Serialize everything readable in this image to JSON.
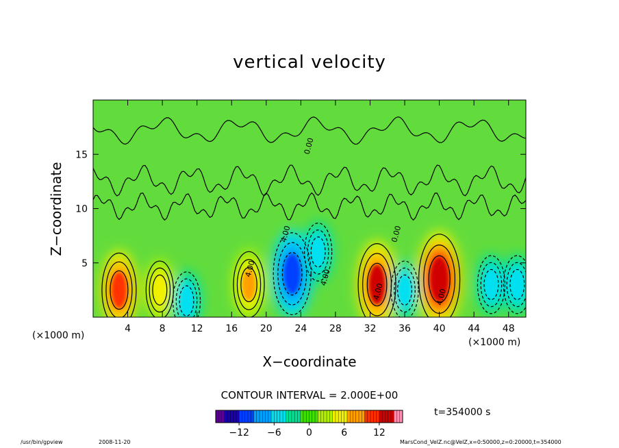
{
  "chart_data": {
    "type": "heatmap",
    "title": "vertical velocity",
    "xlabel": "X−coordinate",
    "ylabel": "Z−coordinate",
    "x_unit_left": "(×1000 m)",
    "x_unit_right": "(×1000 m)",
    "xlim": [
      0,
      50
    ],
    "ylim": [
      0,
      20
    ],
    "x_ticks": [
      4,
      8,
      12,
      16,
      20,
      24,
      28,
      32,
      36,
      40,
      44,
      48
    ],
    "y_ticks": [
      5,
      10,
      15
    ],
    "contour_interval_label": "CONTOUR INTERVAL = 2.000E+00",
    "contour_labels": [
      {
        "text": "4.00",
        "x": 18.4,
        "y": 4.4
      },
      {
        "text": "4.00",
        "x": 27.1,
        "y": 3.6
      },
      {
        "text": "0.00",
        "x": 35.3,
        "y": 7.6
      },
      {
        "text": "0.00",
        "x": 25.2,
        "y": 15.7
      },
      {
        "text": "4.00",
        "x": 33.2,
        "y": 2.3
      },
      {
        "text": "4.00",
        "x": 40.5,
        "y": 1.8
      },
      {
        "text": "4.00",
        "x": 22.5,
        "y": 7.6
      }
    ],
    "features": [
      {
        "x": 3.0,
        "z": 2.5,
        "value": 10
      },
      {
        "x": 7.7,
        "z": 2.5,
        "value": 6
      },
      {
        "x": 18.0,
        "z": 3.0,
        "value": 8
      },
      {
        "x": 32.8,
        "z": 3.0,
        "value": 12
      },
      {
        "x": 40.0,
        "z": 3.5,
        "value": 14
      },
      {
        "x": 10.8,
        "z": 1.5,
        "value": -6
      },
      {
        "x": 23.0,
        "z": 4.0,
        "value": -12
      },
      {
        "x": 26.0,
        "z": 6.0,
        "value": -6
      },
      {
        "x": 36.0,
        "z": 2.5,
        "value": -6
      },
      {
        "x": 46.0,
        "z": 3.0,
        "value": -6
      },
      {
        "x": 49.0,
        "z": 3.0,
        "value": -6
      }
    ],
    "colorbar": {
      "min": -16,
      "max": 16,
      "ticks": [
        -12,
        -6,
        0,
        6,
        12
      ],
      "tick_labels": [
        "−12",
        "−6",
        "0",
        "6",
        "12"
      ],
      "colors": [
        "#5a008f",
        "#1a00b0",
        "#0040ff",
        "#00a0ff",
        "#00e0f0",
        "#00e090",
        "#40e000",
        "#b0f000",
        "#f0f000",
        "#ffa000",
        "#ff3000",
        "#d00000",
        "#ff8fb0"
      ]
    },
    "time_label": "t=354000 s"
  },
  "footer": {
    "program": "/usr/bin/gpview",
    "date": "2008-11-20",
    "source": "MarsCond_VelZ.nc@VelZ,x=0:50000,z=0:20000,t=354000"
  }
}
